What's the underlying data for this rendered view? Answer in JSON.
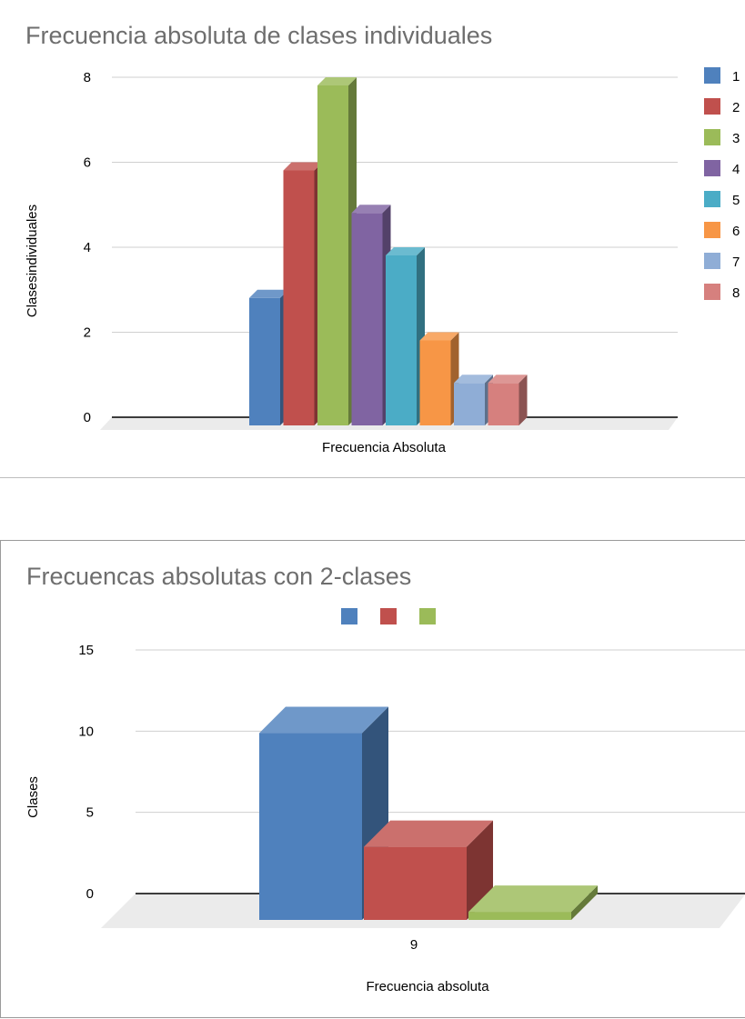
{
  "chart_data": [
    {
      "type": "bar",
      "title": "Frecuencia absoluta de clases individuales",
      "xlabel": "Frecuencia Absoluta",
      "ylabel": "Clasesindividuales",
      "ylim": [
        0,
        8
      ],
      "yticks": [
        "0",
        "2",
        "4",
        "6",
        "8"
      ],
      "categories": [
        ""
      ],
      "series": [
        {
          "name": "1",
          "values": [
            3
          ],
          "color": "#4f81bd"
        },
        {
          "name": "2",
          "values": [
            6
          ],
          "color": "#c0504d"
        },
        {
          "name": "3",
          "values": [
            8
          ],
          "color": "#9bbb59"
        },
        {
          "name": "4",
          "values": [
            5
          ],
          "color": "#8064a2"
        },
        {
          "name": "5",
          "values": [
            4
          ],
          "color": "#4bacc6"
        },
        {
          "name": "6",
          "values": [
            2
          ],
          "color": "#f79646"
        },
        {
          "name": "7",
          "values": [
            1
          ],
          "color": "#8fadd6"
        },
        {
          "name": "8",
          "values": [
            1
          ],
          "color": "#d6807e"
        }
      ],
      "legend": "right",
      "grid": true,
      "style": "3d"
    },
    {
      "type": "bar",
      "title": "Frecuencas absolutas con 2-clases",
      "xlabel": "Frecuencia absoluta",
      "ylabel": "Clases",
      "ylim": [
        0,
        15
      ],
      "yticks": [
        "0",
        "5",
        "10",
        "15"
      ],
      "categories": [
        "9"
      ],
      "series": [
        {
          "values": [
            11.5
          ],
          "color": "#4f81bd"
        },
        {
          "values": [
            4.5
          ],
          "color": "#c0504d"
        },
        {
          "values": [
            0.5
          ],
          "color": "#9bbb59"
        }
      ],
      "legend": "top",
      "grid": true,
      "style": "3d"
    }
  ]
}
